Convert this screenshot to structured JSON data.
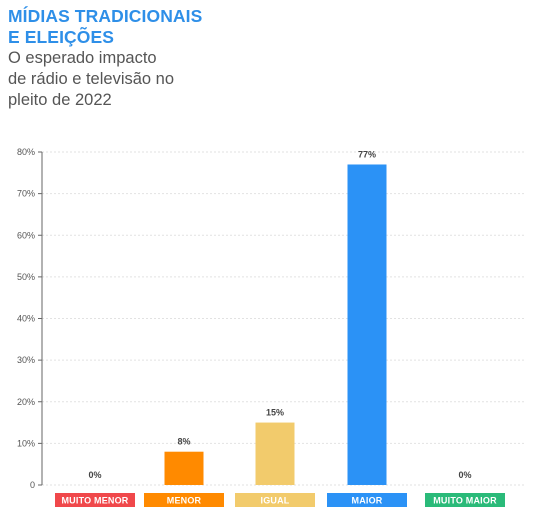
{
  "header": {
    "title_lines": [
      "MÍDIAS TRADICIONAIS",
      "E ELEIÇÕES"
    ],
    "subtitle_lines": [
      "O esperado impacto",
      "de rádio e televisão no",
      "pleito de 2022"
    ]
  },
  "chart_data": {
    "type": "bar",
    "title": "MÍDIAS TRADICIONAIS E ELEIÇÕES",
    "subtitle": "O esperado impacto de rádio e televisão no pleito de 2022",
    "categories": [
      "MUITO MENOR",
      "MENOR",
      "IGUAL",
      "MAIOR",
      "MUITO MAIOR"
    ],
    "values": [
      0,
      8,
      15,
      77,
      0
    ],
    "value_labels": [
      "0%",
      "8%",
      "15%",
      "77%",
      "0%"
    ],
    "colors": [
      "#f0484b",
      "#ff8a00",
      "#f2cb6c",
      "#2b92f6",
      "#2aba79"
    ],
    "ylim": [
      0,
      80
    ],
    "yticks": [
      "0",
      "10%",
      "20%",
      "30%",
      "40%",
      "50%",
      "60%",
      "70%",
      "80%"
    ],
    "grid": true,
    "xlabel": "",
    "ylabel": ""
  }
}
